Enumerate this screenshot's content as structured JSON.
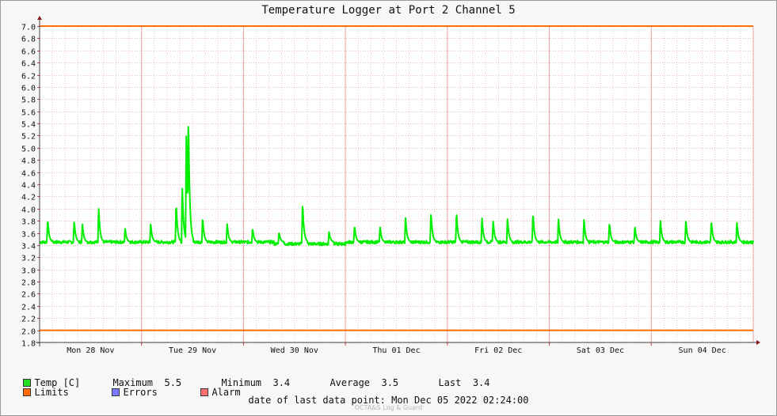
{
  "chart_data": {
    "type": "line",
    "title": "Temperature Logger at Port 2 Channel 5",
    "ylim": [
      1.8,
      7.0
    ],
    "y_ticks": [
      "7.0",
      "6.8",
      "6.6",
      "6.4",
      "6.2",
      "6.0",
      "5.8",
      "5.6",
      "5.4",
      "5.2",
      "5.0",
      "4.8",
      "4.6",
      "4.4",
      "4.2",
      "4.0",
      "3.8",
      "3.6",
      "3.4",
      "3.2",
      "3.0",
      "2.8",
      "2.6",
      "2.4",
      "2.2",
      "2.0",
      "1.8"
    ],
    "x_tick_labels": [
      "Mon 28 Nov",
      "Tue 29 Nov",
      "Wed 30 Nov",
      "Thu 01 Dec",
      "Fri 02 Dec",
      "Sat 03 Dec",
      "Sun 04 Dec"
    ],
    "x_unit": "days from start of plot (plot spans 7 days)",
    "x_range": [
      0,
      7
    ],
    "grid": true,
    "series": [
      {
        "name": "Temp [C]",
        "color": "#00ee00",
        "baseline": 3.45,
        "peaks": [
          {
            "x": 0.08,
            "y": 3.82
          },
          {
            "x": 0.34,
            "y": 3.8
          },
          {
            "x": 0.42,
            "y": 3.74
          },
          {
            "x": 0.58,
            "y": 4.0
          },
          {
            "x": 0.84,
            "y": 3.67
          },
          {
            "x": 1.09,
            "y": 3.75
          },
          {
            "x": 1.34,
            "y": 4.08
          },
          {
            "x": 1.4,
            "y": 4.33
          },
          {
            "x": 1.44,
            "y": 5.25
          },
          {
            "x": 1.46,
            "y": 5.5
          },
          {
            "x": 1.6,
            "y": 3.84
          },
          {
            "x": 1.84,
            "y": 3.75
          },
          {
            "x": 2.09,
            "y": 3.67
          },
          {
            "x": 2.35,
            "y": 3.6
          },
          {
            "x": 2.58,
            "y": 4.08
          },
          {
            "x": 2.84,
            "y": 3.62
          },
          {
            "x": 3.09,
            "y": 3.72
          },
          {
            "x": 3.34,
            "y": 3.7
          },
          {
            "x": 3.59,
            "y": 3.85
          },
          {
            "x": 3.84,
            "y": 3.93
          },
          {
            "x": 4.09,
            "y": 3.93
          },
          {
            "x": 4.34,
            "y": 3.84
          },
          {
            "x": 4.45,
            "y": 3.8
          },
          {
            "x": 4.59,
            "y": 3.84
          },
          {
            "x": 4.84,
            "y": 3.93
          },
          {
            "x": 5.09,
            "y": 3.84
          },
          {
            "x": 5.34,
            "y": 3.82
          },
          {
            "x": 5.59,
            "y": 3.76
          },
          {
            "x": 5.84,
            "y": 3.71
          },
          {
            "x": 6.09,
            "y": 3.8
          },
          {
            "x": 6.34,
            "y": 3.8
          },
          {
            "x": 6.59,
            "y": 3.8
          },
          {
            "x": 6.84,
            "y": 3.78
          }
        ]
      },
      {
        "name": "Limits",
        "color": "#ff7000",
        "values": [
          7.0,
          2.0
        ]
      }
    ],
    "legend": {
      "temp_label": "Temp [C]",
      "maximum_label": "Maximum",
      "maximum_value": "5.5",
      "minimum_label": "Minimum",
      "minimum_value": "3.4",
      "average_label": "Average",
      "average_value": "3.5",
      "last_label": "Last",
      "last_value": "3.4",
      "limits_label": "Limits",
      "errors_label": "Errors",
      "alarm_label": "Alarm",
      "colors": {
        "temp": "#22dd22",
        "limits": "#ff7000",
        "errors": "#7a7aff",
        "alarm": "#ff7070"
      }
    }
  },
  "footer": {
    "date_label": "date of last data point:",
    "date_value": "Mon Dec 05 2022 02:24:00"
  },
  "watermark": "OCTA&S Log & Guard"
}
